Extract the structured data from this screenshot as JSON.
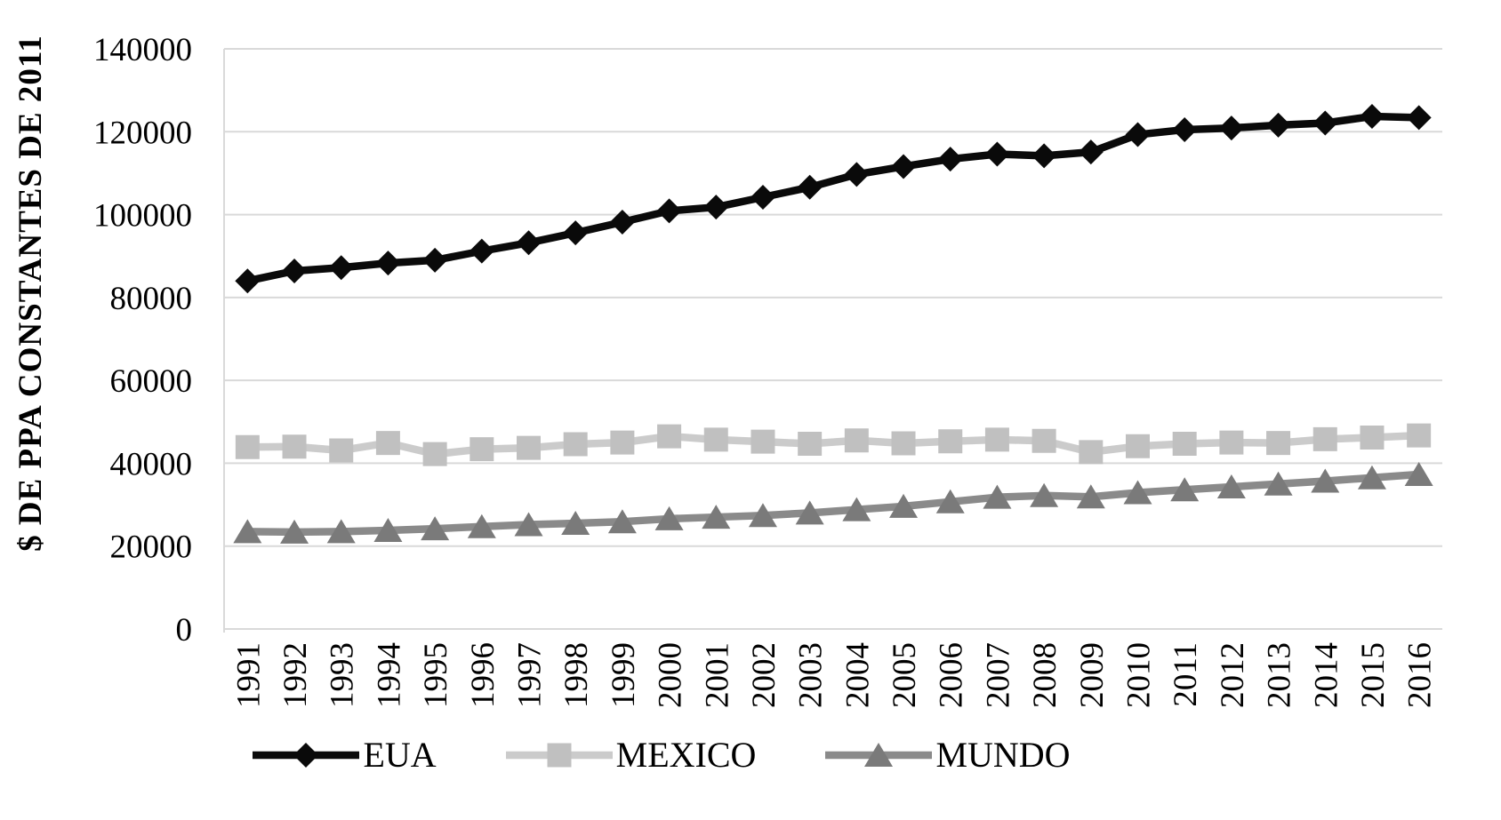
{
  "chart_data": {
    "type": "line",
    "title": "",
    "xlabel": "",
    "ylabel": "$ DE PPA CONSTANTES DE 2011",
    "ylim": [
      0,
      140000
    ],
    "ytick_step": 20000,
    "yticks": [
      0,
      20000,
      40000,
      60000,
      80000,
      100000,
      120000,
      140000
    ],
    "grid": true,
    "legend_position": "bottom",
    "categories": [
      "1991",
      "1992",
      "1993",
      "1994",
      "1995",
      "1996",
      "1997",
      "1998",
      "1999",
      "2000",
      "2001",
      "2002",
      "2003",
      "2004",
      "2005",
      "2006",
      "2007",
      "2008",
      "2009",
      "2010",
      "2011",
      "2012",
      "2013",
      "2014",
      "2015",
      "2016"
    ],
    "series": [
      {
        "name": "EUA",
        "marker": "diamond",
        "marker_color": "#0a0a0a",
        "line_color": "#0a0a0a",
        "values": [
          84000,
          86400,
          87200,
          88300,
          89000,
          91200,
          93200,
          95600,
          98200,
          100900,
          101800,
          104200,
          106600,
          109700,
          111600,
          113400,
          114600,
          114200,
          115100,
          119300,
          120500,
          120900,
          121600,
          122100,
          123700,
          123400
        ]
      },
      {
        "name": "MEXICO",
        "marker": "square",
        "marker_color": "#c0c0c0",
        "line_color": "#cbcbcb",
        "values": [
          43900,
          44000,
          43100,
          44900,
          42200,
          43400,
          43700,
          44600,
          45000,
          46500,
          45700,
          45200,
          44700,
          45500,
          44800,
          45300,
          45700,
          45400,
          42700,
          44100,
          44700,
          45000,
          44900,
          45800,
          46200,
          46700
        ]
      },
      {
        "name": "MUNDO",
        "marker": "triangle",
        "marker_color": "#7a7a7a",
        "line_color": "#8a8a8a",
        "values": [
          23500,
          23400,
          23500,
          23800,
          24200,
          24700,
          25200,
          25500,
          25900,
          26600,
          27000,
          27400,
          28000,
          28800,
          29600,
          30700,
          31800,
          32200,
          31900,
          32900,
          33600,
          34300,
          35000,
          35700,
          36500,
          37300
        ]
      }
    ],
    "colors": {
      "gridline": "#d9d9d9",
      "axis_line": "#d9d9d9",
      "text": "#000000",
      "background": "#ffffff"
    }
  }
}
